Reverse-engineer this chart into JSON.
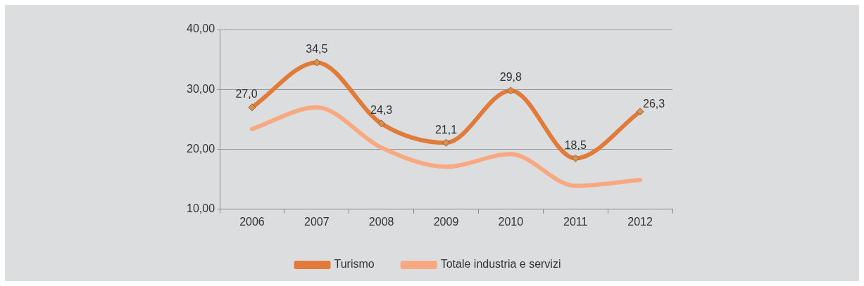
{
  "chart_data": {
    "type": "line",
    "categories": [
      "2006",
      "2007",
      "2008",
      "2009",
      "2010",
      "2011",
      "2012"
    ],
    "series": [
      {
        "name": "Turismo",
        "color": "#e07b3c",
        "values": [
          27.0,
          34.5,
          24.3,
          21.1,
          29.8,
          18.5,
          26.3
        ],
        "value_labels": [
          "27,0",
          "34,5",
          "24,3",
          "21,1",
          "29,8",
          "18,5",
          "26,3"
        ],
        "marker": "diamond"
      },
      {
        "name": "Totale industria e servizi",
        "color": "#f9a982",
        "values": [
          23.4,
          27.0,
          20.3,
          17.1,
          19.2,
          13.9,
          14.9
        ],
        "marker": "none"
      }
    ],
    "ylim": [
      10,
      40
    ],
    "yticks": [
      {
        "value": 10,
        "label": "10,00"
      },
      {
        "value": 20,
        "label": "20,00"
      },
      {
        "value": 30,
        "label": "30,00"
      },
      {
        "value": 40,
        "label": "40,00"
      }
    ],
    "grid": "y",
    "legend": "bottom"
  }
}
